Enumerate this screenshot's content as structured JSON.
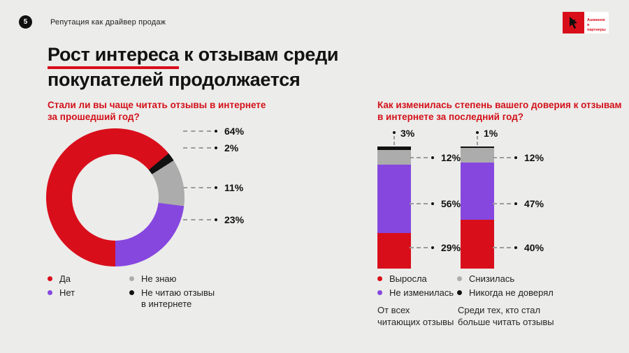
{
  "page": {
    "background": "#ECECEA",
    "slide_number": "5",
    "header_title": "Репутация как драйвер продаж",
    "logo_text": "Ашманов\nи партнеры",
    "title": {
      "underlined": "Рост интереса",
      "rest_line1": " к отзывам среди",
      "line2": "покупателей продолжается"
    }
  },
  "colors": {
    "accent_red": "#D90E1B",
    "purple": "#8647DF",
    "gray": "#ACACAC",
    "black": "#111111",
    "question_red": "#D31019"
  },
  "chart_data": [
    {
      "type": "pie",
      "donut": true,
      "title": "Стали ли вы чаще читать отзывы в интернете\nза прошедший год?",
      "start_angle_deg": 180,
      "segments": [
        {
          "label": "Да",
          "value": 64,
          "pct_label": "64%",
          "color": "#D90E1B"
        },
        {
          "label": "Не читаю отзывы в интернете",
          "value": 2,
          "pct_label": "2%",
          "color": "#111111"
        },
        {
          "label": "Не знаю",
          "value": 11,
          "pct_label": "11%",
          "color": "#ACACAC"
        },
        {
          "label": "Нет",
          "value": 23,
          "pct_label": "23%",
          "color": "#8647DF"
        }
      ],
      "legend": [
        {
          "label": "Да",
          "color": "#D90E1B"
        },
        {
          "label": "Не знаю",
          "color": "#ACACAC"
        },
        {
          "label": "Нет",
          "color": "#8647DF"
        },
        {
          "label": "Не читаю отзывы\nв интернете",
          "color": "#111111"
        }
      ]
    },
    {
      "type": "bar",
      "subtype": "stacked-percent-columns",
      "title": "Как изменилась степень вашего доверия к отзывам\nв интернете за последний год?",
      "categories": [
        "От всех\nчитающих отзывы",
        "Среди тех, кто стал\nбольше читать отзывы"
      ],
      "series_top_to_bottom": [
        {
          "name": "Никогда не доверял",
          "color": "#111111",
          "values": [
            3,
            1
          ]
        },
        {
          "name": "Снизилась",
          "color": "#ACACAC",
          "values": [
            12,
            12
          ]
        },
        {
          "name": "Не изменилась",
          "color": "#8647DF",
          "values": [
            56,
            47
          ]
        },
        {
          "name": "Выросла",
          "color": "#D90E1B",
          "values": [
            29,
            40
          ]
        }
      ],
      "labels": {
        "bar0": {
          "top": "3%",
          "side": [
            "12%",
            "56%",
            "29%"
          ]
        },
        "bar1": {
          "top": "1%",
          "side": [
            "12%",
            "47%",
            "40%"
          ]
        }
      },
      "legend": [
        {
          "label": "Выросла",
          "color": "#D90E1B"
        },
        {
          "label": "Снизилась",
          "color": "#ACACAC"
        },
        {
          "label": "Не изменилась",
          "color": "#8647DF"
        },
        {
          "label": "Никогда не доверял",
          "color": "#111111"
        }
      ],
      "ylim": [
        0,
        100
      ]
    }
  ]
}
